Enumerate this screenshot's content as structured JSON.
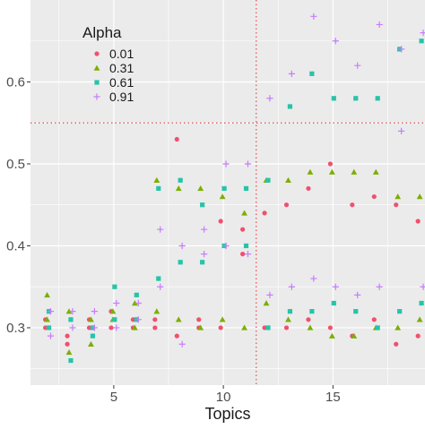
{
  "chart_data": {
    "type": "scatter",
    "xlabel": "Topics",
    "ylabel": "",
    "xlim": [
      1.2,
      19.2
    ],
    "ylim": [
      0.23,
      0.7
    ],
    "x_ticks": [
      5,
      10,
      15
    ],
    "y_ticks": [
      0.3,
      0.4,
      0.5,
      0.6
    ],
    "x_tick_labels": [
      "5",
      "10",
      "15"
    ],
    "y_tick_labels": [
      "0.3",
      "0.4",
      "0.5",
      "0.6"
    ],
    "grid": true,
    "panel_background": "#ebebeb",
    "reference_lines": {
      "x": 11.5,
      "y": 0.55,
      "color": "#e8484f",
      "style": "dotted"
    },
    "legend": {
      "title": "Alpha",
      "position": "top-left-inside"
    },
    "series": [
      {
        "name": "0.01",
        "color": "#f0506e",
        "shape": "circle",
        "points": [
          [
            2,
            0.31
          ],
          [
            2,
            0.3
          ],
          [
            3,
            0.29
          ],
          [
            3,
            0.28
          ],
          [
            4,
            0.31
          ],
          [
            4,
            0.3
          ],
          [
            5,
            0.32
          ],
          [
            5,
            0.3
          ],
          [
            6,
            0.31
          ],
          [
            6,
            0.3
          ],
          [
            7,
            0.31
          ],
          [
            7,
            0.3
          ],
          [
            8,
            0.53
          ],
          [
            8,
            0.29
          ],
          [
            9,
            0.31
          ],
          [
            9,
            0.3
          ],
          [
            10,
            0.43
          ],
          [
            10,
            0.3
          ],
          [
            11,
            0.42
          ],
          [
            11,
            0.39
          ],
          [
            12,
            0.44
          ],
          [
            12,
            0.3
          ],
          [
            13,
            0.45
          ],
          [
            13,
            0.3
          ],
          [
            14,
            0.47
          ],
          [
            14,
            0.31
          ],
          [
            15,
            0.5
          ],
          [
            15,
            0.3
          ],
          [
            16,
            0.45
          ],
          [
            16,
            0.29
          ],
          [
            17,
            0.46
          ],
          [
            17,
            0.31
          ],
          [
            18,
            0.45
          ],
          [
            18,
            0.28
          ],
          [
            19,
            0.43
          ],
          [
            19,
            0.29
          ]
        ]
      },
      {
        "name": "0.31",
        "color": "#7cae00",
        "shape": "triangle",
        "points": [
          [
            2,
            0.34
          ],
          [
            2,
            0.31
          ],
          [
            3,
            0.32
          ],
          [
            3,
            0.27
          ],
          [
            4,
            0.31
          ],
          [
            4,
            0.28
          ],
          [
            5,
            0.32
          ],
          [
            5,
            0.31
          ],
          [
            6,
            0.33
          ],
          [
            6,
            0.3
          ],
          [
            7,
            0.48
          ],
          [
            7,
            0.32
          ],
          [
            8,
            0.47
          ],
          [
            8,
            0.31
          ],
          [
            9,
            0.47
          ],
          [
            9,
            0.3
          ],
          [
            10,
            0.46
          ],
          [
            10,
            0.31
          ],
          [
            11,
            0.44
          ],
          [
            11,
            0.3
          ],
          [
            12,
            0.48
          ],
          [
            12,
            0.33
          ],
          [
            13,
            0.48
          ],
          [
            13,
            0.31
          ],
          [
            14,
            0.49
          ],
          [
            14,
            0.3
          ],
          [
            15,
            0.49
          ],
          [
            15,
            0.29
          ],
          [
            16,
            0.49
          ],
          [
            16,
            0.29
          ],
          [
            17,
            0.49
          ],
          [
            17,
            0.3
          ],
          [
            18,
            0.46
          ],
          [
            18,
            0.3
          ],
          [
            19,
            0.46
          ],
          [
            19,
            0.31
          ]
        ]
      },
      {
        "name": "0.61",
        "color": "#26c4a8",
        "shape": "square",
        "points": [
          [
            2,
            0.32
          ],
          [
            2,
            0.3
          ],
          [
            3,
            0.31
          ],
          [
            3,
            0.26
          ],
          [
            4,
            0.3
          ],
          [
            4,
            0.29
          ],
          [
            5,
            0.35
          ],
          [
            5,
            0.31
          ],
          [
            6,
            0.34
          ],
          [
            6,
            0.31
          ],
          [
            7,
            0.47
          ],
          [
            7,
            0.36
          ],
          [
            8,
            0.48
          ],
          [
            8,
            0.38
          ],
          [
            9,
            0.45
          ],
          [
            9,
            0.38
          ],
          [
            10,
            0.47
          ],
          [
            10,
            0.4
          ],
          [
            11,
            0.47
          ],
          [
            11,
            0.4
          ],
          [
            12,
            0.48
          ],
          [
            12,
            0.3
          ],
          [
            13,
            0.57
          ],
          [
            13,
            0.32
          ],
          [
            14,
            0.61
          ],
          [
            14,
            0.32
          ],
          [
            15,
            0.58
          ],
          [
            15,
            0.33
          ],
          [
            16,
            0.58
          ],
          [
            16,
            0.32
          ],
          [
            17,
            0.58
          ],
          [
            17,
            0.3
          ],
          [
            18,
            0.64
          ],
          [
            18,
            0.32
          ],
          [
            19,
            0.65
          ],
          [
            19,
            0.33
          ]
        ]
      },
      {
        "name": "0.91",
        "color": "#c77cff",
        "shape": "plus",
        "points": [
          [
            2,
            0.32
          ],
          [
            2,
            0.29
          ],
          [
            3,
            0.32
          ],
          [
            3,
            0.3
          ],
          [
            4,
            0.32
          ],
          [
            4,
            0.3
          ],
          [
            5,
            0.33
          ],
          [
            5,
            0.3
          ],
          [
            6,
            0.33
          ],
          [
            6,
            0.31
          ],
          [
            7,
            0.42
          ],
          [
            7,
            0.35
          ],
          [
            8,
            0.4
          ],
          [
            8,
            0.28
          ],
          [
            9,
            0.42
          ],
          [
            9,
            0.39
          ],
          [
            10,
            0.5
          ],
          [
            10,
            0.4
          ],
          [
            11,
            0.5
          ],
          [
            11,
            0.39
          ],
          [
            12,
            0.58
          ],
          [
            12,
            0.34
          ],
          [
            13,
            0.61
          ],
          [
            13,
            0.35
          ],
          [
            14,
            0.68
          ],
          [
            14,
            0.36
          ],
          [
            15,
            0.65
          ],
          [
            15,
            0.35
          ],
          [
            16,
            0.62
          ],
          [
            16,
            0.34
          ],
          [
            17,
            0.67
          ],
          [
            17,
            0.35
          ],
          [
            18,
            0.64
          ],
          [
            18,
            0.54
          ],
          [
            19,
            0.66
          ],
          [
            19,
            0.35
          ]
        ]
      }
    ]
  }
}
